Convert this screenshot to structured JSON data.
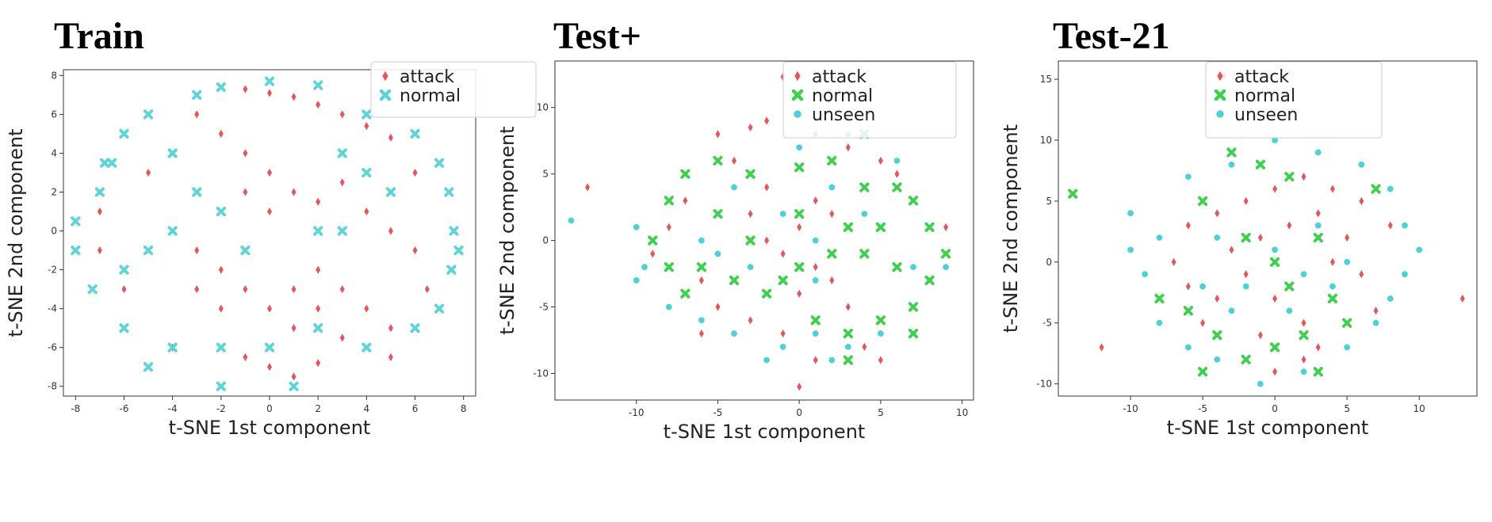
{
  "chart_data": [
    {
      "type": "scatter",
      "title": "Train",
      "xlabel": "t-SNE 1st component",
      "ylabel": "t-SNE 2nd component",
      "xlim": [
        -8.5,
        8.5
      ],
      "ylim": [
        -8.5,
        8.3
      ],
      "xticks": [
        -8,
        -6,
        -4,
        -2,
        0,
        2,
        4,
        6,
        8
      ],
      "yticks": [
        -8,
        -6,
        -4,
        -2,
        0,
        2,
        4,
        6,
        8
      ],
      "grid": false,
      "legend_position": "top-right",
      "series": [
        {
          "name": "attack",
          "color": "#e0575c",
          "marker": "diamond",
          "points": [
            [
              -1,
              7.3
            ],
            [
              0,
              7.1
            ],
            [
              1,
              6.9
            ],
            [
              2,
              6.5
            ],
            [
              3,
              6
            ],
            [
              4,
              5.4
            ],
            [
              5,
              4.8
            ],
            [
              -2,
              5
            ],
            [
              -1,
              4
            ],
            [
              0,
              3
            ],
            [
              1,
              2
            ],
            [
              -1,
              2
            ],
            [
              0,
              1
            ],
            [
              2,
              1.5
            ],
            [
              3,
              2.5
            ],
            [
              4,
              1
            ],
            [
              5,
              0
            ],
            [
              6,
              -1
            ],
            [
              -3,
              -1
            ],
            [
              -2,
              -2
            ],
            [
              -1,
              -3
            ],
            [
              0,
              -4
            ],
            [
              1,
              -3
            ],
            [
              2,
              -2
            ],
            [
              3,
              -3
            ],
            [
              2,
              -4
            ],
            [
              1,
              -5
            ],
            [
              -2,
              -4
            ],
            [
              -3,
              -3
            ],
            [
              4,
              -4
            ],
            [
              5,
              -5
            ],
            [
              3,
              -5.5
            ],
            [
              -1,
              -6.5
            ],
            [
              0,
              -7
            ],
            [
              1,
              -7.5
            ],
            [
              2,
              -6.8
            ],
            [
              -7,
              1
            ],
            [
              -7,
              -1
            ],
            [
              -6,
              -3
            ],
            [
              -5,
              3
            ],
            [
              -3,
              6
            ],
            [
              6,
              3
            ],
            [
              6.5,
              -3
            ],
            [
              -4,
              -6
            ],
            [
              5,
              -6.5
            ]
          ]
        },
        {
          "name": "normal",
          "color": "#5ed3d8",
          "marker": "x",
          "points": [
            [
              -3,
              7
            ],
            [
              -2,
              7.4
            ],
            [
              -5,
              6
            ],
            [
              -6,
              5
            ],
            [
              -6.5,
              3.5
            ],
            [
              -7,
              2
            ],
            [
              -4,
              4
            ],
            [
              -3,
              2
            ],
            [
              -2,
              1
            ],
            [
              -4,
              0
            ],
            [
              -5,
              -1
            ],
            [
              -6,
              -2
            ],
            [
              -7.3,
              -3
            ],
            [
              -6,
              -5
            ],
            [
              -4,
              -6
            ],
            [
              -2,
              -6
            ],
            [
              0,
              -6
            ],
            [
              2,
              -5
            ],
            [
              4,
              -6
            ],
            [
              6,
              -5
            ],
            [
              7,
              -4
            ],
            [
              7.5,
              -2
            ],
            [
              7.6,
              0
            ],
            [
              7.4,
              2
            ],
            [
              7,
              3.5
            ],
            [
              6,
              5
            ],
            [
              4,
              6
            ],
            [
              2,
              7.5
            ],
            [
              0,
              7.7
            ],
            [
              3,
              4
            ],
            [
              4,
              3
            ],
            [
              5,
              2
            ],
            [
              2,
              0
            ],
            [
              3,
              0
            ],
            [
              -1,
              -1
            ],
            [
              -8,
              -1
            ],
            [
              -8,
              0.5
            ],
            [
              -6.8,
              3.5
            ],
            [
              7.8,
              -1
            ],
            [
              -5,
              -7
            ],
            [
              1,
              -8
            ],
            [
              -2,
              -8
            ]
          ]
        }
      ]
    },
    {
      "type": "scatter",
      "title": "Test+",
      "xlabel": "t-SNE 1st component",
      "ylabel": "t-SNE 2nd component",
      "xlim": [
        -15,
        10.7
      ],
      "ylim": [
        -12,
        13.5
      ],
      "xticks": [
        -10,
        -5,
        0,
        5,
        10
      ],
      "yticks": [
        -10,
        -5,
        0,
        5,
        10
      ],
      "grid": false,
      "legend_position": "top-right",
      "series": [
        {
          "name": "attack",
          "color": "#e0575c",
          "marker": "diamond",
          "points": [
            [
              -1,
              12.3
            ],
            [
              -13,
              4
            ],
            [
              -5,
              8
            ],
            [
              -3,
              8.5
            ],
            [
              -2,
              9
            ],
            [
              1,
              8
            ],
            [
              3,
              7
            ],
            [
              5,
              6
            ],
            [
              6,
              5
            ],
            [
              -7,
              3
            ],
            [
              -8,
              1
            ],
            [
              -9,
              -1
            ],
            [
              -6,
              -3
            ],
            [
              -5,
              -5
            ],
            [
              -3,
              -6
            ],
            [
              -1,
              -7
            ],
            [
              0,
              -4
            ],
            [
              1,
              -2
            ],
            [
              2,
              -3
            ],
            [
              -1,
              -1
            ],
            [
              0,
              1
            ],
            [
              1,
              3
            ],
            [
              2,
              2
            ],
            [
              -2,
              4
            ],
            [
              -4,
              6
            ],
            [
              -3,
              2
            ],
            [
              -2,
              0
            ],
            [
              1,
              -9
            ],
            [
              4,
              -8
            ],
            [
              3,
              -5
            ],
            [
              0,
              -11
            ],
            [
              -6,
              -7
            ],
            [
              5,
              -9
            ],
            [
              9,
              1
            ]
          ]
        },
        {
          "name": "normal",
          "color": "#3ecf4e",
          "marker": "x",
          "points": [
            [
              -8,
              3
            ],
            [
              -7,
              5
            ],
            [
              -5,
              6
            ],
            [
              -3,
              5
            ],
            [
              0,
              5.5
            ],
            [
              2,
              6
            ],
            [
              4,
              8
            ],
            [
              6,
              4
            ],
            [
              7,
              3
            ],
            [
              8,
              1
            ],
            [
              9,
              -1
            ],
            [
              8,
              -3
            ],
            [
              7,
              -5
            ],
            [
              5,
              -6
            ],
            [
              3,
              -7
            ],
            [
              1,
              -6
            ],
            [
              -2,
              -4
            ],
            [
              -4,
              -3
            ],
            [
              -6,
              -2
            ],
            [
              -8,
              -2
            ],
            [
              -9,
              0
            ],
            [
              0,
              2
            ],
            [
              3,
              1
            ],
            [
              4,
              -1
            ],
            [
              6,
              -2
            ],
            [
              2,
              -1
            ],
            [
              -3,
              0
            ],
            [
              -5,
              2
            ],
            [
              4,
              4
            ],
            [
              5,
              1
            ],
            [
              0,
              -2
            ],
            [
              -1,
              -3
            ],
            [
              3,
              -9
            ],
            [
              7,
              -7
            ],
            [
              -7,
              -4
            ]
          ]
        },
        {
          "name": "unseen",
          "color": "#4fd0d6",
          "marker": "circle",
          "points": [
            [
              -14,
              1.5
            ],
            [
              -10,
              1
            ],
            [
              -9.5,
              -2
            ],
            [
              -10,
              -3
            ],
            [
              -8,
              -5
            ],
            [
              -6,
              -6
            ],
            [
              -4,
              -7
            ],
            [
              -1,
              -8
            ],
            [
              1,
              -7
            ],
            [
              3,
              -8
            ],
            [
              5,
              -7
            ],
            [
              -3,
              -2
            ],
            [
              -1,
              2
            ],
            [
              1,
              0
            ],
            [
              2,
              4
            ],
            [
              -4,
              4
            ],
            [
              0,
              7
            ],
            [
              3,
              8
            ],
            [
              6,
              6
            ],
            [
              -6,
              0
            ],
            [
              -2,
              -9
            ],
            [
              2,
              -9
            ],
            [
              9,
              -2
            ],
            [
              7,
              -2
            ],
            [
              -5,
              -1
            ],
            [
              4,
              2
            ],
            [
              1,
              -3
            ]
          ]
        }
      ]
    },
    {
      "type": "scatter",
      "title": "Test-21",
      "xlabel": "t-SNE 1st component",
      "ylabel": "t-SNE 2nd component",
      "xlim": [
        -15,
        14
      ],
      "ylim": [
        -11,
        16.5
      ],
      "xticks": [
        -10,
        -5,
        0,
        5,
        10
      ],
      "yticks": [
        -10,
        -5,
        0,
        5,
        10,
        15
      ],
      "grid": false,
      "legend_position": "top-right",
      "series": [
        {
          "name": "attack",
          "color": "#e0575c",
          "marker": "diamond",
          "points": [
            [
              -3.5,
              15.3
            ],
            [
              -12,
              -7
            ],
            [
              13,
              -3
            ],
            [
              -6,
              3
            ],
            [
              -4,
              4
            ],
            [
              -2,
              5
            ],
            [
              0,
              6
            ],
            [
              2,
              7
            ],
            [
              4,
              6
            ],
            [
              6,
              5
            ],
            [
              8,
              3
            ],
            [
              -7,
              0
            ],
            [
              -6,
              -2
            ],
            [
              -4,
              -3
            ],
            [
              -2,
              -1
            ],
            [
              0,
              -3
            ],
            [
              2,
              -5
            ],
            [
              3,
              -7
            ],
            [
              -1,
              -6
            ],
            [
              -3,
              1
            ],
            [
              -1,
              2
            ],
            [
              1,
              3
            ],
            [
              3,
              4
            ],
            [
              5,
              2
            ],
            [
              4,
              0
            ],
            [
              6,
              -1
            ],
            [
              -5,
              -5
            ],
            [
              0,
              -9
            ],
            [
              2,
              -8
            ],
            [
              7,
              -4
            ]
          ]
        },
        {
          "name": "normal",
          "color": "#3ecf4e",
          "marker": "x",
          "points": [
            [
              -14,
              5.6
            ],
            [
              -3,
              9
            ],
            [
              -1,
              8
            ],
            [
              1,
              7
            ],
            [
              -8,
              -3
            ],
            [
              -6,
              -4
            ],
            [
              -4,
              -6
            ],
            [
              -2,
              -8
            ],
            [
              0,
              -7
            ],
            [
              2,
              -6
            ],
            [
              3,
              -9
            ],
            [
              -5,
              -9
            ],
            [
              5,
              -5
            ],
            [
              4,
              -3
            ],
            [
              -2,
              2
            ],
            [
              0,
              0
            ],
            [
              1,
              -2
            ],
            [
              7,
              6
            ],
            [
              -5,
              5
            ],
            [
              3,
              2
            ]
          ]
        },
        {
          "name": "unseen",
          "color": "#4fd0d6",
          "marker": "circle",
          "points": [
            [
              -10,
              1
            ],
            [
              -9,
              -1
            ],
            [
              -10,
              4
            ],
            [
              -8,
              -5
            ],
            [
              -6,
              -7
            ],
            [
              -4,
              -8
            ],
            [
              -1,
              -10
            ],
            [
              2,
              -9
            ],
            [
              5,
              -7
            ],
            [
              7,
              -5
            ],
            [
              8,
              -3
            ],
            [
              9,
              -1
            ],
            [
              10,
              1
            ],
            [
              9,
              3
            ],
            [
              8,
              6
            ],
            [
              6,
              8
            ],
            [
              3,
              9
            ],
            [
              0,
              10
            ],
            [
              -3,
              8
            ],
            [
              -6,
              7
            ],
            [
              -8,
              2
            ],
            [
              -4,
              2
            ],
            [
              -2,
              -2
            ],
            [
              0,
              1
            ],
            [
              2,
              -1
            ],
            [
              4,
              -2
            ],
            [
              1,
              -4
            ],
            [
              -3,
              -4
            ],
            [
              5,
              0
            ],
            [
              -5,
              -2
            ],
            [
              3,
              3
            ]
          ]
        }
      ]
    }
  ]
}
